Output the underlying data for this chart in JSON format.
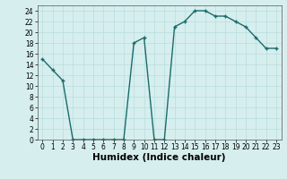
{
  "xlabel": "Humidex (Indice chaleur)",
  "x": [
    0,
    1,
    2,
    3,
    4,
    5,
    6,
    7,
    8,
    9,
    10,
    11,
    12,
    13,
    14,
    15,
    16,
    17,
    18,
    19,
    20,
    21,
    22,
    23
  ],
  "y": [
    15,
    13,
    11,
    0,
    0,
    0,
    0,
    0,
    0,
    18,
    19,
    0,
    0,
    21,
    22,
    24,
    24,
    23,
    23,
    22,
    21,
    19,
    17,
    17
  ],
  "line_color": "#1a6b6b",
  "marker": "+",
  "marker_size": 3,
  "marker_lw": 1.0,
  "line_width": 1.0,
  "bg_color": "#d6eeee",
  "grid_color": "#b8dede",
  "ylim": [
    0,
    25
  ],
  "xlim_min": -0.5,
  "xlim_max": 23.5,
  "yticks": [
    0,
    2,
    4,
    6,
    8,
    10,
    12,
    14,
    16,
    18,
    20,
    22,
    24
  ],
  "xticks": [
    0,
    1,
    2,
    3,
    4,
    5,
    6,
    7,
    8,
    9,
    10,
    11,
    12,
    13,
    14,
    15,
    16,
    17,
    18,
    19,
    20,
    21,
    22,
    23
  ],
  "tick_fontsize": 5.5,
  "xlabel_fontsize": 7.5,
  "xlabel_fontweight": "bold"
}
